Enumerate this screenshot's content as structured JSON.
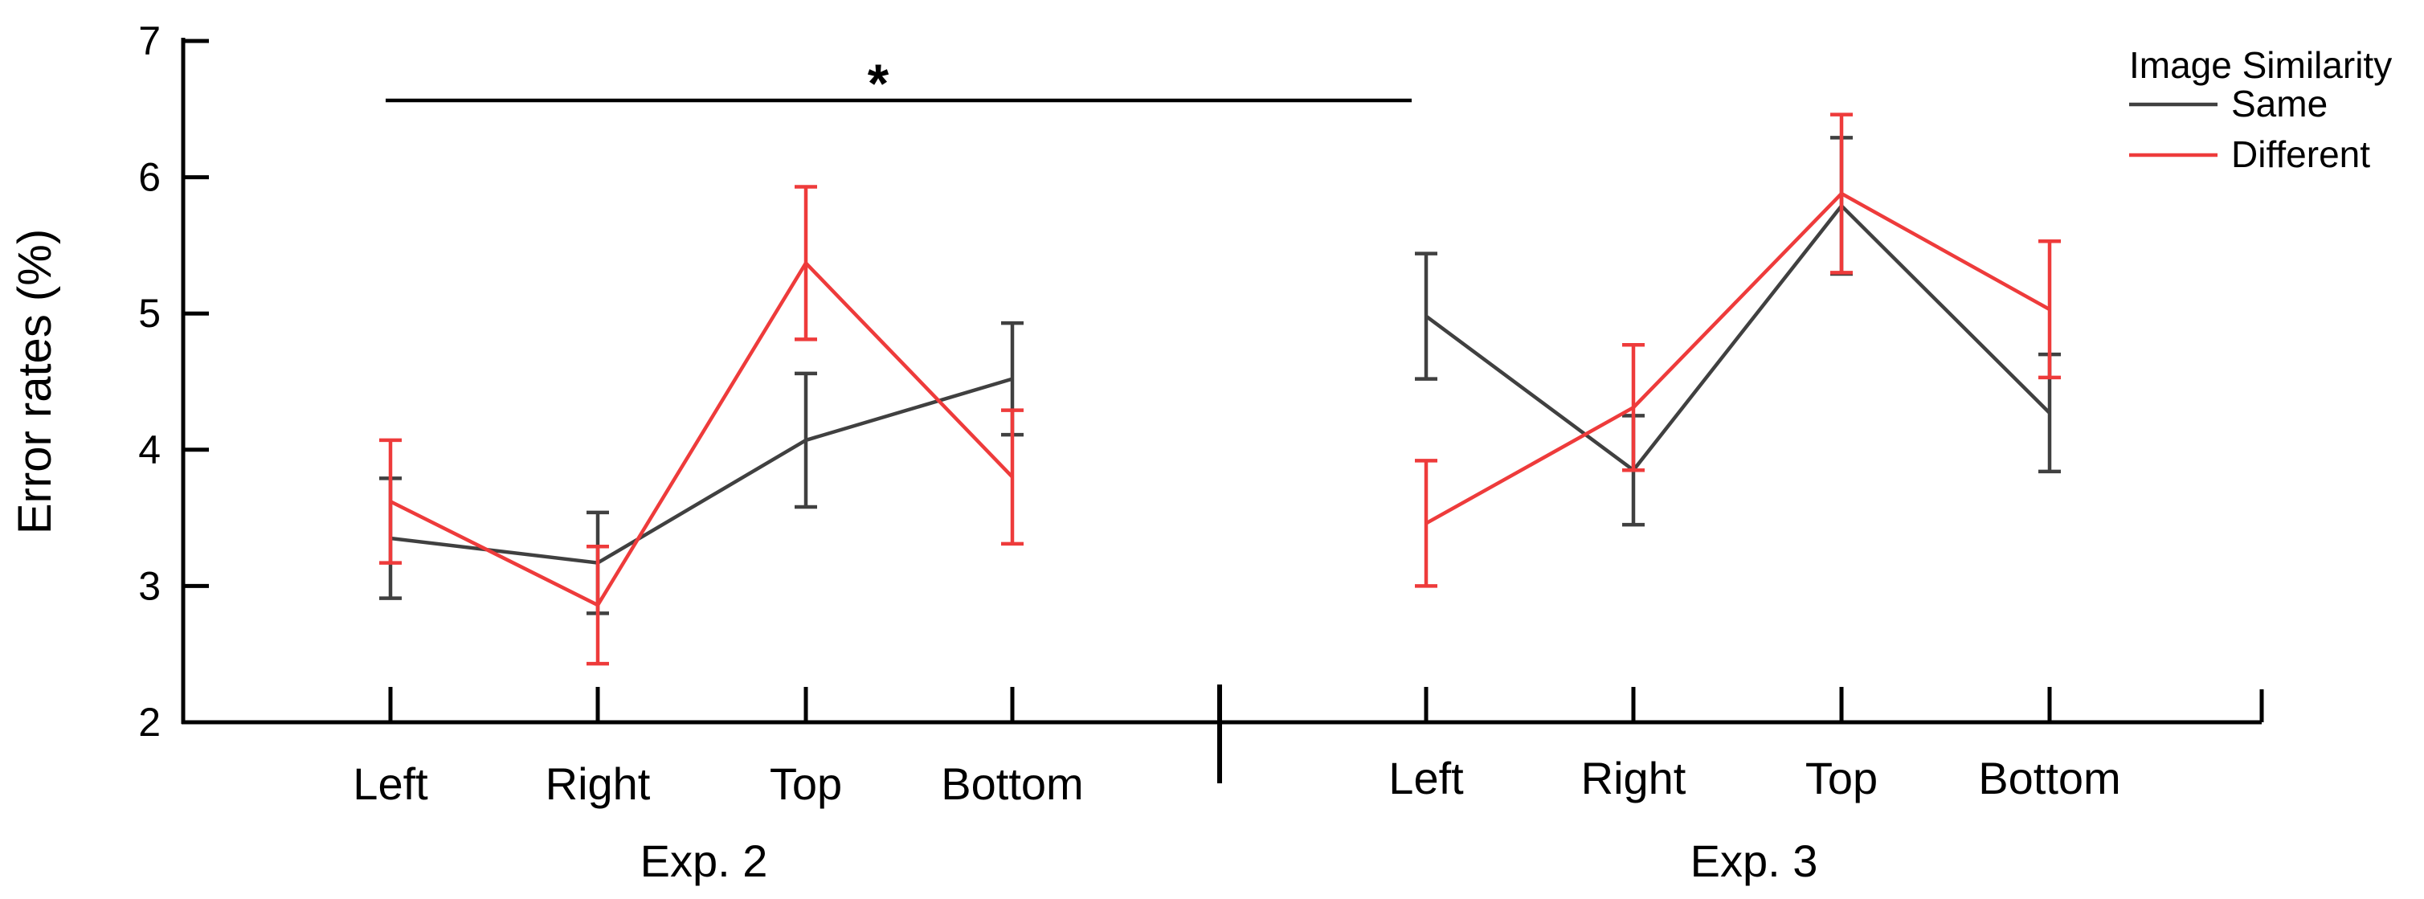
{
  "chart_data": {
    "type": "line",
    "ylabel": "Error rates (%)",
    "ylim": [
      2,
      7
    ],
    "yticks": [
      "2",
      "3",
      "4",
      "5",
      "6",
      "7"
    ],
    "grid": false,
    "legend": {
      "title": "Image Similarity",
      "position": "top-right",
      "entries": [
        "Same",
        "Different"
      ]
    },
    "significance": {
      "label": "*",
      "from": "Exp. 2 Left",
      "to": "Exp. 3 Left"
    },
    "panels": [
      {
        "label": "Exp. 2",
        "categories": [
          "Left",
          "Right",
          "Top",
          "Bottom"
        ],
        "series": [
          {
            "name": "Same",
            "color": "#404040",
            "values": [
              3.35,
              3.17,
              4.07,
              4.52
            ],
            "errors": [
              0.44,
              0.37,
              0.49,
              0.41
            ]
          },
          {
            "name": "Different",
            "color": "#ee3b3b",
            "values": [
              3.62,
              2.86,
              5.37,
              3.8
            ],
            "errors": [
              0.45,
              0.43,
              0.56,
              0.49
            ]
          }
        ]
      },
      {
        "label": "Exp. 3",
        "categories": [
          "Left",
          "Right",
          "Top",
          "Bottom"
        ],
        "series": [
          {
            "name": "Same",
            "color": "#404040",
            "values": [
              4.98,
              3.85,
              5.79,
              4.27
            ],
            "errors": [
              0.46,
              0.4,
              0.5,
              0.43
            ]
          },
          {
            "name": "Different",
            "color": "#ee3b3b",
            "values": [
              3.46,
              4.31,
              5.88,
              5.03
            ],
            "errors": [
              0.46,
              0.46,
              0.58,
              0.5
            ]
          }
        ]
      }
    ]
  }
}
